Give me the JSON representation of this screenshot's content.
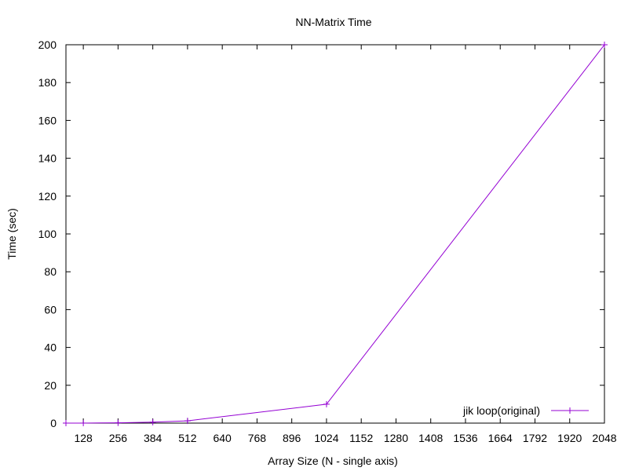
{
  "chart_data": {
    "type": "line",
    "title": "NN-Matrix Time",
    "xlabel": "Array Size (N - single axis)",
    "ylabel": "Time (sec)",
    "xlim": [
      64,
      2048
    ],
    "ylim": [
      0,
      200
    ],
    "x_ticks": [
      128,
      256,
      384,
      512,
      640,
      768,
      896,
      1024,
      1152,
      1280,
      1408,
      1536,
      1664,
      1792,
      1920,
      2048
    ],
    "y_ticks": [
      0,
      20,
      40,
      60,
      80,
      100,
      120,
      140,
      160,
      180,
      200
    ],
    "grid": false,
    "legend_position": "bottom-right",
    "series": [
      {
        "name": "jik loop(original)",
        "color": "#9400d3",
        "marker": "plus",
        "x": [
          64,
          128,
          256,
          384,
          512,
          1024,
          2048
        ],
        "values": [
          0.01,
          0.02,
          0.15,
          0.5,
          1.2,
          10,
          200
        ]
      }
    ]
  }
}
